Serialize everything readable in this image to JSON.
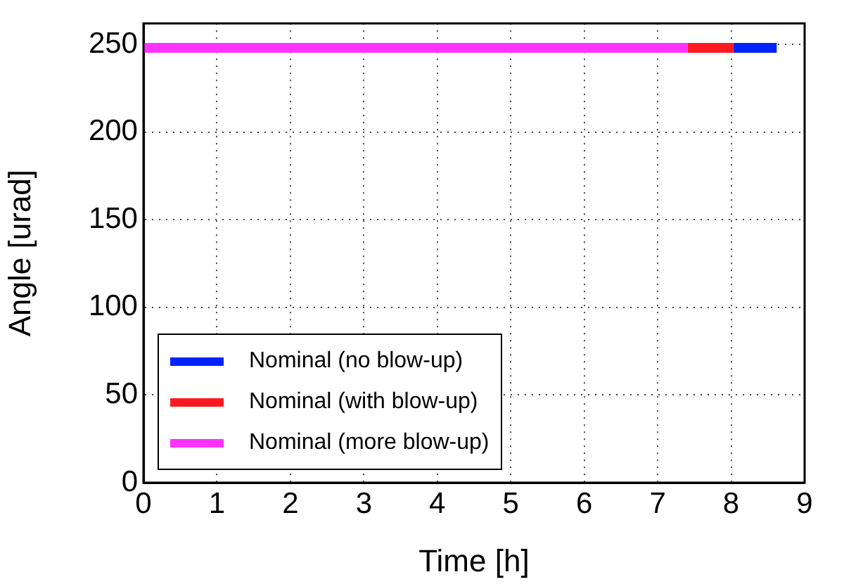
{
  "chart_data": {
    "type": "line",
    "xlabel": "Time [h]",
    "ylabel": "Angle [urad]",
    "xlim": [
      0,
      9
    ],
    "xticks": [
      0,
      1,
      2,
      3,
      4,
      5,
      6,
      7,
      8,
      9
    ],
    "ylim": [
      0,
      262
    ],
    "yticks": [
      0,
      50,
      100,
      150,
      200,
      250
    ],
    "grid": true,
    "legend": "bottom left",
    "marker": "none",
    "line_style": "solid",
    "series": [
      {
        "name": "Nominal (no blow-up)",
        "color": "#0022ff",
        "x": [
          8.03,
          8.62
        ],
        "values": [
          248,
          248
        ]
      },
      {
        "name": "Nominal (with blow-up)",
        "color": "#ff1a22",
        "x": [
          7.41,
          8.03
        ],
        "values": [
          248,
          248
        ]
      },
      {
        "name": "Nominal (more blow-up)",
        "color": "#ff33ff",
        "x": [
          0,
          7.41
        ],
        "values": [
          248,
          248
        ]
      }
    ]
  }
}
